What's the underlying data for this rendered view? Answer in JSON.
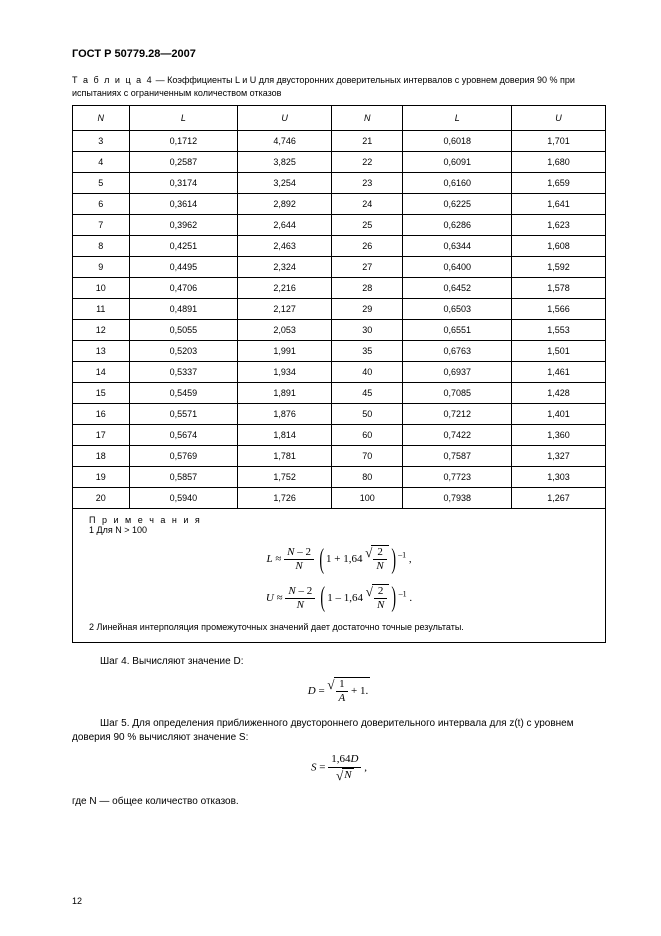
{
  "header": "ГОСТ Р 50779.28—2007",
  "caption_prefix": "Т а б л и ц а   4",
  "caption_text": " — Коэффициенты L и U для двусторонних доверительных интервалов с уровнем доверия 90 % при испытаниях с ограниченным количеством отказов",
  "columns": [
    "N",
    "L",
    "U",
    "N",
    "L",
    "U"
  ],
  "rows": [
    [
      "3",
      "0,1712",
      "4,746",
      "21",
      "0,6018",
      "1,701"
    ],
    [
      "4",
      "0,2587",
      "3,825",
      "22",
      "0,6091",
      "1,680"
    ],
    [
      "5",
      "0,3174",
      "3,254",
      "23",
      "0,6160",
      "1,659"
    ],
    [
      "6",
      "0,3614",
      "2,892",
      "24",
      "0,6225",
      "1,641"
    ],
    [
      "7",
      "0,3962",
      "2,644",
      "25",
      "0,6286",
      "1,623"
    ],
    [
      "8",
      "0,4251",
      "2,463",
      "26",
      "0,6344",
      "1,608"
    ],
    [
      "9",
      "0,4495",
      "2,324",
      "27",
      "0,6400",
      "1,592"
    ],
    [
      "10",
      "0,4706",
      "2,216",
      "28",
      "0,6452",
      "1,578"
    ],
    [
      "11",
      "0,4891",
      "2,127",
      "29",
      "0,6503",
      "1,566"
    ],
    [
      "12",
      "0,5055",
      "2,053",
      "30",
      "0,6551",
      "1,553"
    ],
    [
      "13",
      "0,5203",
      "1,991",
      "35",
      "0,6763",
      "1,501"
    ],
    [
      "14",
      "0,5337",
      "1,934",
      "40",
      "0,6937",
      "1,461"
    ],
    [
      "15",
      "0,5459",
      "1,891",
      "45",
      "0,7085",
      "1,428"
    ],
    [
      "16",
      "0,5571",
      "1,876",
      "50",
      "0,7212",
      "1,401"
    ],
    [
      "17",
      "0,5674",
      "1,814",
      "60",
      "0,7422",
      "1,360"
    ],
    [
      "18",
      "0,5769",
      "1,781",
      "70",
      "0,7587",
      "1,327"
    ],
    [
      "19",
      "0,5857",
      "1,752",
      "80",
      "0,7723",
      "1,303"
    ],
    [
      "20",
      "0,5940",
      "1,726",
      "100",
      "0,7938",
      "1,267"
    ]
  ],
  "notes_title": "П р и м е ч а н и я",
  "note1": "1  Для N > 100",
  "note2": "2  Линейная интерполяция промежуточных значений дает достаточно точные результаты.",
  "step4": "Шаг 4. Вычисляют значение D:",
  "step5": "Шаг  5. Для определения приближенного двустороннего доверительного интервала для z(t) с уровнем доверия 90 % вычисляют значение S:",
  "where": "где N — общее количество отказов.",
  "page_number": "12"
}
